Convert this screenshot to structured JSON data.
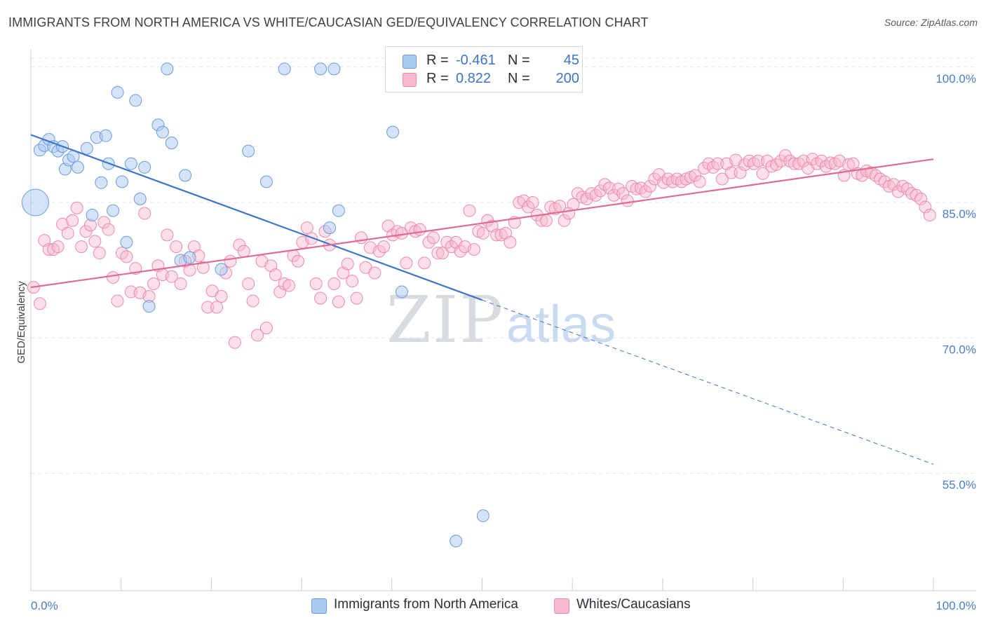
{
  "header": {
    "title": "IMMIGRANTS FROM NORTH AMERICA VS WHITE/CAUCASIAN GED/EQUIVALENCY CORRELATION CHART",
    "source": "Source: ZipAtlas.com"
  },
  "watermark": {
    "zip": "ZIP",
    "atlas": "atlas"
  },
  "legend": {
    "rows": [
      {
        "r_label": "R =",
        "r_value": "-0.461",
        "n_label": "N =",
        "n_value": "45",
        "color": "#a9c8f2"
      },
      {
        "r_label": "R =",
        "r_value": "0.822",
        "n_label": "N =",
        "n_value": "200",
        "color": "#f8b9cd"
      }
    ]
  },
  "bottom_legend": [
    {
      "label": "Immigrants from North America",
      "color": "#a9c8f2"
    },
    {
      "label": "Whites/Caucasians",
      "color": "#f8b9cd"
    }
  ],
  "chart_data": {
    "type": "scatter",
    "title": "IMMIGRANTS FROM NORTH AMERICA VS WHITE/CAUCASIAN GED/EQUIVALENCY CORRELATION CHART",
    "xlabel": "",
    "ylabel": "GED/Equivalency",
    "xlim": [
      0,
      100
    ],
    "ylim": [
      42,
      102
    ],
    "y_ticks": [
      {
        "value": 100,
        "label": "100.0%"
      },
      {
        "value": 85,
        "label": "85.0%"
      },
      {
        "value": 70,
        "label": "70.0%"
      },
      {
        "value": 55,
        "label": "55.0%"
      }
    ],
    "x_tick_labels": {
      "min": "0.0%",
      "max": "100.0%"
    },
    "grid": true,
    "legend_position": "top-center",
    "series": [
      {
        "name": "Immigrants from North America",
        "color": "#a9c8f2",
        "stroke": "#6a9bdc",
        "trend": {
          "x0": 0,
          "y0": 92.5,
          "x1": 50,
          "y1": 74.2,
          "dash_to_x": 100,
          "dash_to_y": 56.0,
          "color": "#3d74c6"
        },
        "points": [
          [
            0.5,
            85.0
          ],
          [
            1,
            90.8
          ],
          [
            1.5,
            91.3
          ],
          [
            2,
            92.0
          ],
          [
            2.5,
            91.2
          ],
          [
            3,
            90.7
          ],
          [
            3.5,
            91.2
          ],
          [
            3.8,
            88.7
          ],
          [
            4.2,
            89.7
          ],
          [
            4.7,
            90.1
          ],
          [
            5.2,
            88.9
          ],
          [
            6.2,
            91.0
          ],
          [
            6.8,
            83.6
          ],
          [
            7.3,
            92.2
          ],
          [
            7.8,
            87.2
          ],
          [
            8.3,
            92.4
          ],
          [
            8.6,
            89.3
          ],
          [
            9.1,
            84.1
          ],
          [
            9.6,
            97.2
          ],
          [
            10.1,
            87.3
          ],
          [
            10.6,
            80.6
          ],
          [
            11.1,
            89.3
          ],
          [
            11.6,
            96.3
          ],
          [
            12.1,
            85.4
          ],
          [
            12.6,
            88.9
          ],
          [
            13.1,
            73.5
          ],
          [
            14.1,
            93.6
          ],
          [
            14.6,
            92.8
          ],
          [
            15.1,
            99.8
          ],
          [
            15.6,
            91.6
          ],
          [
            16.6,
            78.6
          ],
          [
            17.1,
            88.0
          ],
          [
            17.6,
            78.9
          ],
          [
            21.1,
            77.6
          ],
          [
            24.1,
            90.7
          ],
          [
            26.1,
            87.3
          ],
          [
            28.1,
            99.8
          ],
          [
            32.1,
            99.8
          ],
          [
            33.1,
            82.2
          ],
          [
            34.1,
            84.1
          ],
          [
            33.6,
            99.8
          ],
          [
            40.1,
            92.8
          ],
          [
            41.1,
            75.1
          ],
          [
            47.1,
            47.5
          ],
          [
            50.1,
            50.3
          ]
        ]
      },
      {
        "name": "Whites/Caucasians",
        "color": "#f8b9cd",
        "stroke": "#e88aab",
        "trend": {
          "x0": 0,
          "y0": 75.6,
          "x1": 100,
          "y1": 89.8,
          "color": "#e06a96"
        },
        "points": [
          [
            0.3,
            75.6
          ],
          [
            1,
            73.8
          ],
          [
            1.5,
            80.8
          ],
          [
            2,
            79.8
          ],
          [
            2.5,
            79.8
          ],
          [
            3,
            80.1
          ],
          [
            3.5,
            82.6
          ],
          [
            4.1,
            81.6
          ],
          [
            4.6,
            83.0
          ],
          [
            5.1,
            84.4
          ],
          [
            5.6,
            80.1
          ],
          [
            6.1,
            81.8
          ],
          [
            6.6,
            82.5
          ],
          [
            7.1,
            80.7
          ],
          [
            7.6,
            79.4
          ],
          [
            8.1,
            82.8
          ],
          [
            8.6,
            82.0
          ],
          [
            9.1,
            76.7
          ],
          [
            9.6,
            74.1
          ],
          [
            10.1,
            79.4
          ],
          [
            10.6,
            79.0
          ],
          [
            11.1,
            75.1
          ],
          [
            11.6,
            77.7
          ],
          [
            12.1,
            75.0
          ],
          [
            12.6,
            83.8
          ],
          [
            13.1,
            74.6
          ],
          [
            13.6,
            76.0
          ],
          [
            14.1,
            78.0
          ],
          [
            14.6,
            77.0
          ],
          [
            15.1,
            81.4
          ],
          [
            15.6,
            76.8
          ],
          [
            16.1,
            80.1
          ],
          [
            16.6,
            76.0
          ],
          [
            17.1,
            78.5
          ],
          [
            17.6,
            77.5
          ],
          [
            18.1,
            80.1
          ],
          [
            18.6,
            79.1
          ],
          [
            19.1,
            77.8
          ],
          [
            19.6,
            73.4
          ],
          [
            20.1,
            75.2
          ],
          [
            20.6,
            73.4
          ],
          [
            21.1,
            74.6
          ],
          [
            21.6,
            77.2
          ],
          [
            22.1,
            78.5
          ],
          [
            22.6,
            69.5
          ],
          [
            23.1,
            80.3
          ],
          [
            23.6,
            79.6
          ],
          [
            24.1,
            76.0
          ],
          [
            24.6,
            74.1
          ],
          [
            25.1,
            70.3
          ],
          [
            25.6,
            78.5
          ],
          [
            26.1,
            71.1
          ],
          [
            26.6,
            78.0
          ],
          [
            27.1,
            77.0
          ],
          [
            27.6,
            75.1
          ],
          [
            28.1,
            76.0
          ],
          [
            28.6,
            75.8
          ],
          [
            29.1,
            79.1
          ],
          [
            29.6,
            78.5
          ],
          [
            30.1,
            80.6
          ],
          [
            30.6,
            82.2
          ],
          [
            31.1,
            81.0
          ],
          [
            31.6,
            76.0
          ],
          [
            32.1,
            74.4
          ],
          [
            32.6,
            81.8
          ],
          [
            33.1,
            80.3
          ],
          [
            33.6,
            76.0
          ],
          [
            34.1,
            74.0
          ],
          [
            34.6,
            77.2
          ],
          [
            35.1,
            78.2
          ],
          [
            35.6,
            76.3
          ],
          [
            36.1,
            74.4
          ],
          [
            36.6,
            81.1
          ],
          [
            37.1,
            77.8
          ],
          [
            37.6,
            80.0
          ],
          [
            38.1,
            77.2
          ],
          [
            38.6,
            79.6
          ],
          [
            39.1,
            80.1
          ],
          [
            39.6,
            82.4
          ],
          [
            40.1,
            81.4
          ],
          [
            40.6,
            81.8
          ],
          [
            41.1,
            81.6
          ],
          [
            41.6,
            78.3
          ],
          [
            42.1,
            82.2
          ],
          [
            42.6,
            81.8
          ],
          [
            43.1,
            82.0
          ],
          [
            43.6,
            78.3
          ],
          [
            44.1,
            80.6
          ],
          [
            44.6,
            81.1
          ],
          [
            45.1,
            79.4
          ],
          [
            45.6,
            79.4
          ],
          [
            46.1,
            80.6
          ],
          [
            46.6,
            80.1
          ],
          [
            47.1,
            80.6
          ],
          [
            47.6,
            79.6
          ],
          [
            48.1,
            80.1
          ],
          [
            48.6,
            84.1
          ],
          [
            49.1,
            79.8
          ],
          [
            49.6,
            81.8
          ],
          [
            50.1,
            81.6
          ],
          [
            50.6,
            83.0
          ],
          [
            51.1,
            82.4
          ],
          [
            51.6,
            81.4
          ],
          [
            52.1,
            81.4
          ],
          [
            52.6,
            81.6
          ],
          [
            53.1,
            80.6
          ],
          [
            53.6,
            82.8
          ],
          [
            54.1,
            85.0
          ],
          [
            54.6,
            85.2
          ],
          [
            55.1,
            84.5
          ],
          [
            55.6,
            85.0
          ],
          [
            56.1,
            83.6
          ],
          [
            56.6,
            83.0
          ],
          [
            57.1,
            83.0
          ],
          [
            57.6,
            84.5
          ],
          [
            58.1,
            84.3
          ],
          [
            58.6,
            84.6
          ],
          [
            59.1,
            83.0
          ],
          [
            59.6,
            83.8
          ],
          [
            60.1,
            84.8
          ],
          [
            60.6,
            86.0
          ],
          [
            61.1,
            85.6
          ],
          [
            61.6,
            85.4
          ],
          [
            62.1,
            86.0
          ],
          [
            62.6,
            85.8
          ],
          [
            63.1,
            86.3
          ],
          [
            63.6,
            87.0
          ],
          [
            64.1,
            86.6
          ],
          [
            64.6,
            85.8
          ],
          [
            65.1,
            86.5
          ],
          [
            65.6,
            86.0
          ],
          [
            66.1,
            85.2
          ],
          [
            66.6,
            86.8
          ],
          [
            67.1,
            86.5
          ],
          [
            67.6,
            86.6
          ],
          [
            68.1,
            86.2
          ],
          [
            68.6,
            86.8
          ],
          [
            69.1,
            87.6
          ],
          [
            69.6,
            88.1
          ],
          [
            70.1,
            87.2
          ],
          [
            70.6,
            87.6
          ],
          [
            71.1,
            87.3
          ],
          [
            71.6,
            87.6
          ],
          [
            72.1,
            87.3
          ],
          [
            72.6,
            87.6
          ],
          [
            73.1,
            87.8
          ],
          [
            73.6,
            88.0
          ],
          [
            74.1,
            87.3
          ],
          [
            74.6,
            88.8
          ],
          [
            75.1,
            89.3
          ],
          [
            75.6,
            88.9
          ],
          [
            76.1,
            89.3
          ],
          [
            76.6,
            87.6
          ],
          [
            77.1,
            89.3
          ],
          [
            77.6,
            88.3
          ],
          [
            78.1,
            89.7
          ],
          [
            78.6,
            88.3
          ],
          [
            79.1,
            89.2
          ],
          [
            79.6,
            89.6
          ],
          [
            80.1,
            89.3
          ],
          [
            80.6,
            89.6
          ],
          [
            81.1,
            88.2
          ],
          [
            81.6,
            89.6
          ],
          [
            82.1,
            89.0
          ],
          [
            82.6,
            89.2
          ],
          [
            83.1,
            89.6
          ],
          [
            83.6,
            90.2
          ],
          [
            84.1,
            89.6
          ],
          [
            84.6,
            89.3
          ],
          [
            85.1,
            89.3
          ],
          [
            85.6,
            89.6
          ],
          [
            86.1,
            88.8
          ],
          [
            86.6,
            89.8
          ],
          [
            87.1,
            89.3
          ],
          [
            87.6,
            89.6
          ],
          [
            88.1,
            89.0
          ],
          [
            88.6,
            89.4
          ],
          [
            89.1,
            89.3
          ],
          [
            89.6,
            89.6
          ],
          [
            90.1,
            88.0
          ],
          [
            90.6,
            89.2
          ],
          [
            91.1,
            89.3
          ],
          [
            91.6,
            88.2
          ],
          [
            92.1,
            88.0
          ],
          [
            92.6,
            88.5
          ],
          [
            93.1,
            88.3
          ],
          [
            93.6,
            88.0
          ],
          [
            94.1,
            87.6
          ],
          [
            94.6,
            87.3
          ],
          [
            95.1,
            86.8
          ],
          [
            95.6,
            87.0
          ],
          [
            96.1,
            86.2
          ],
          [
            96.6,
            86.8
          ],
          [
            97.1,
            86.5
          ],
          [
            97.6,
            86.0
          ],
          [
            98.1,
            85.8
          ],
          [
            98.6,
            85.4
          ],
          [
            99.1,
            84.5
          ],
          [
            99.6,
            83.6
          ]
        ]
      }
    ]
  }
}
